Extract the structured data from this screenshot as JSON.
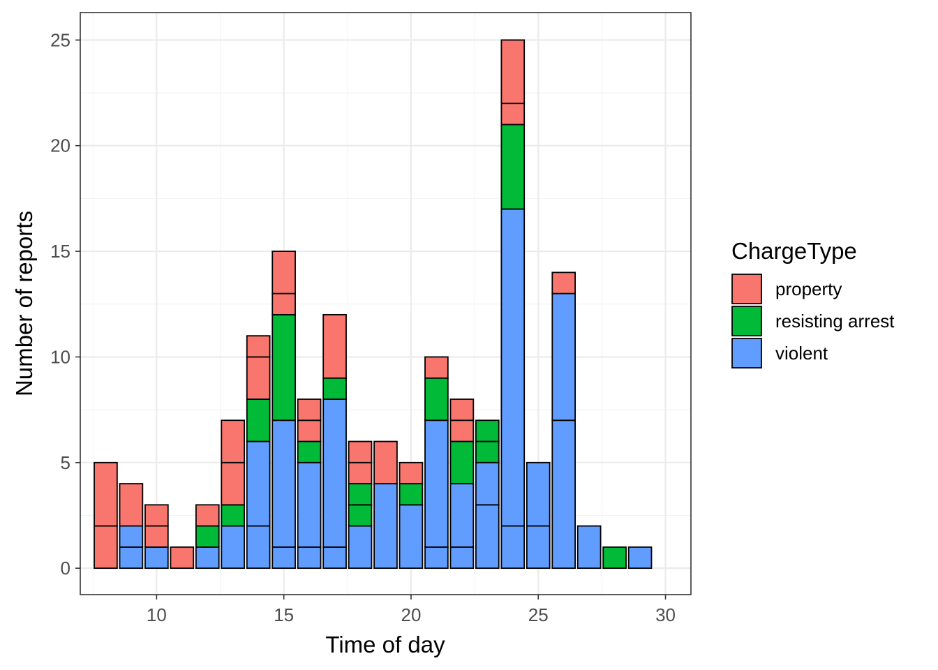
{
  "chart_data": {
    "type": "bar",
    "stacked": true,
    "xlabel": "Time of day",
    "ylabel": "Number of reports",
    "xlim": [
      7,
      31
    ],
    "ylim": [
      -1.25,
      26.3
    ],
    "x_ticks": [
      10,
      15,
      20,
      25,
      30
    ],
    "y_ticks": [
      0,
      5,
      10,
      15,
      20,
      25
    ],
    "grid": true,
    "legend": {
      "title": "ChargeType",
      "position": "right",
      "entries": [
        {
          "name": "property",
          "color": "#F8766D"
        },
        {
          "name": "resisting arrest",
          "color": "#00BA38"
        },
        {
          "name": "violent",
          "color": "#619CFF"
        }
      ]
    },
    "bars": [
      {
        "x": 8,
        "segments": [
          {
            "type": "property",
            "from": 0,
            "to": 2
          },
          {
            "type": "property",
            "from": 2,
            "to": 5
          }
        ]
      },
      {
        "x": 9,
        "segments": [
          {
            "type": "violent",
            "from": 0,
            "to": 1
          },
          {
            "type": "violent",
            "from": 1,
            "to": 2
          },
          {
            "type": "property",
            "from": 2,
            "to": 4
          }
        ]
      },
      {
        "x": 10,
        "segments": [
          {
            "type": "violent",
            "from": 0,
            "to": 1
          },
          {
            "type": "property",
            "from": 1,
            "to": 2
          },
          {
            "type": "property",
            "from": 2,
            "to": 3
          }
        ]
      },
      {
        "x": 11,
        "segments": [
          {
            "type": "property",
            "from": 0,
            "to": 1
          }
        ]
      },
      {
        "x": 12,
        "segments": [
          {
            "type": "violent",
            "from": 0,
            "to": 1
          },
          {
            "type": "resisting arrest",
            "from": 1,
            "to": 2
          },
          {
            "type": "property",
            "from": 2,
            "to": 3
          }
        ]
      },
      {
        "x": 13,
        "segments": [
          {
            "type": "violent",
            "from": 0,
            "to": 2
          },
          {
            "type": "resisting arrest",
            "from": 2,
            "to": 3
          },
          {
            "type": "property",
            "from": 3,
            "to": 5
          },
          {
            "type": "property",
            "from": 5,
            "to": 7
          }
        ]
      },
      {
        "x": 14,
        "segments": [
          {
            "type": "violent",
            "from": 0,
            "to": 2
          },
          {
            "type": "violent",
            "from": 2,
            "to": 6
          },
          {
            "type": "resisting arrest",
            "from": 6,
            "to": 8
          },
          {
            "type": "property",
            "from": 8,
            "to": 10
          },
          {
            "type": "property",
            "from": 10,
            "to": 11
          }
        ]
      },
      {
        "x": 15,
        "segments": [
          {
            "type": "violent",
            "from": 0,
            "to": 1
          },
          {
            "type": "violent",
            "from": 1,
            "to": 7
          },
          {
            "type": "resisting arrest",
            "from": 7,
            "to": 12
          },
          {
            "type": "property",
            "from": 12,
            "to": 13
          },
          {
            "type": "property",
            "from": 13,
            "to": 15
          }
        ]
      },
      {
        "x": 16,
        "segments": [
          {
            "type": "violent",
            "from": 0,
            "to": 1
          },
          {
            "type": "violent",
            "from": 1,
            "to": 5
          },
          {
            "type": "resisting arrest",
            "from": 5,
            "to": 6
          },
          {
            "type": "property",
            "from": 6,
            "to": 7
          },
          {
            "type": "property",
            "from": 7,
            "to": 8
          }
        ]
      },
      {
        "x": 17,
        "segments": [
          {
            "type": "violent",
            "from": 0,
            "to": 1
          },
          {
            "type": "violent",
            "from": 1,
            "to": 8
          },
          {
            "type": "resisting arrest",
            "from": 8,
            "to": 9
          },
          {
            "type": "property",
            "from": 9,
            "to": 12
          }
        ]
      },
      {
        "x": 18,
        "segments": [
          {
            "type": "violent",
            "from": 0,
            "to": 2
          },
          {
            "type": "resisting arrest",
            "from": 2,
            "to": 3
          },
          {
            "type": "resisting arrest",
            "from": 3,
            "to": 4
          },
          {
            "type": "property",
            "from": 4,
            "to": 5
          },
          {
            "type": "property",
            "from": 5,
            "to": 6
          }
        ]
      },
      {
        "x": 19,
        "segments": [
          {
            "type": "violent",
            "from": 0,
            "to": 4
          },
          {
            "type": "property",
            "from": 4,
            "to": 6
          }
        ]
      },
      {
        "x": 20,
        "segments": [
          {
            "type": "violent",
            "from": 0,
            "to": 3
          },
          {
            "type": "resisting arrest",
            "from": 3,
            "to": 4
          },
          {
            "type": "property",
            "from": 4,
            "to": 5
          }
        ]
      },
      {
        "x": 21,
        "segments": [
          {
            "type": "violent",
            "from": 0,
            "to": 1
          },
          {
            "type": "violent",
            "from": 1,
            "to": 7
          },
          {
            "type": "resisting arrest",
            "from": 7,
            "to": 9
          },
          {
            "type": "property",
            "from": 9,
            "to": 10
          }
        ]
      },
      {
        "x": 22,
        "segments": [
          {
            "type": "violent",
            "from": 0,
            "to": 1
          },
          {
            "type": "violent",
            "from": 1,
            "to": 4
          },
          {
            "type": "resisting arrest",
            "from": 4,
            "to": 6
          },
          {
            "type": "property",
            "from": 6,
            "to": 7
          },
          {
            "type": "property",
            "from": 7,
            "to": 8
          }
        ]
      },
      {
        "x": 23,
        "segments": [
          {
            "type": "violent",
            "from": 0,
            "to": 3
          },
          {
            "type": "violent",
            "from": 3,
            "to": 5
          },
          {
            "type": "resisting arrest",
            "from": 5,
            "to": 6
          },
          {
            "type": "resisting arrest",
            "from": 6,
            "to": 7
          }
        ]
      },
      {
        "x": 24,
        "segments": [
          {
            "type": "violent",
            "from": 0,
            "to": 2
          },
          {
            "type": "violent",
            "from": 2,
            "to": 17
          },
          {
            "type": "resisting arrest",
            "from": 17,
            "to": 21
          },
          {
            "type": "property",
            "from": 21,
            "to": 22
          },
          {
            "type": "property",
            "from": 22,
            "to": 25
          }
        ]
      },
      {
        "x": 25,
        "segments": [
          {
            "type": "violent",
            "from": 0,
            "to": 2
          },
          {
            "type": "violent",
            "from": 2,
            "to": 5
          }
        ]
      },
      {
        "x": 26,
        "segments": [
          {
            "type": "violent",
            "from": 0,
            "to": 7
          },
          {
            "type": "violent",
            "from": 7,
            "to": 13
          },
          {
            "type": "property",
            "from": 13,
            "to": 14
          }
        ]
      },
      {
        "x": 27,
        "segments": [
          {
            "type": "violent",
            "from": 0,
            "to": 2
          }
        ]
      },
      {
        "x": 28,
        "segments": [
          {
            "type": "resisting arrest",
            "from": 0,
            "to": 1
          }
        ]
      },
      {
        "x": 29,
        "segments": [
          {
            "type": "violent",
            "from": 0,
            "to": 1
          }
        ]
      }
    ]
  }
}
